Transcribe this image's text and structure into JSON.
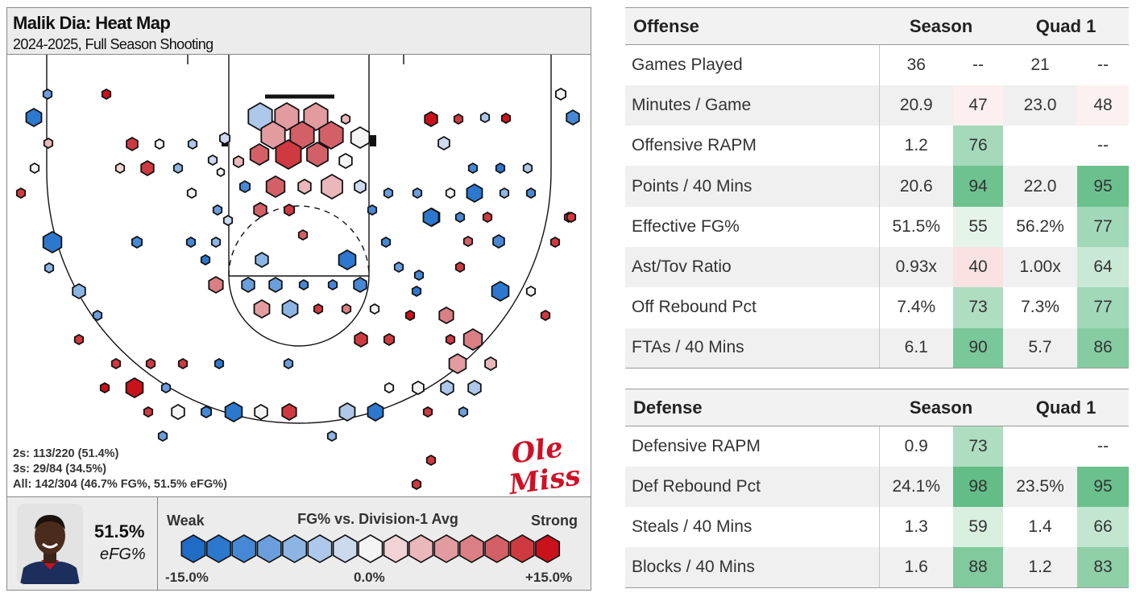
{
  "header": {
    "title": "Malik Dia: Heat Map",
    "subtitle": "2024-2025, Full Season Shooting"
  },
  "shooting_lines": {
    "twos": "2s: 113/220 (51.4%)",
    "threes": "3s: 29/84 (34.5%)",
    "all": "All: 142/304 (46.7% FG%, 51.5% eFG%)"
  },
  "logo": {
    "line1": "Ole",
    "line2": "Miss",
    "color": "#ce1126"
  },
  "player": {
    "efg_value": "51.5%",
    "efg_label": "eFG%"
  },
  "legend": {
    "weak": "Weak",
    "title": "FG% vs. Division-1 Avg",
    "strong": "Strong",
    "min": "-15.0%",
    "mid": "0.0%",
    "max": "+15.0%",
    "colors": [
      "#1f6cc6",
      "#2c78cf",
      "#4688d6",
      "#6a9edd",
      "#8db5e4",
      "#adc8ea",
      "#cdd9ee",
      "#f4f4f4",
      "#f2d3d5",
      "#eab7ba",
      "#e29ca0",
      "#da7f84",
      "#d36067",
      "#cf3a40",
      "#c9121c"
    ]
  },
  "chart_data": {
    "type": "heatmap",
    "title": "Malik Dia: Heat Map",
    "subtitle": "2024-2025, Full Season Shooting",
    "color_scale": {
      "min": -15.0,
      "mid": 0.0,
      "max": 15.0,
      "metric": "FG% vs. Division-1 Avg"
    },
    "summary": {
      "twos": "113/220",
      "two_pct": 51.4,
      "threes": "29/84",
      "three_pct": 34.5,
      "all": "142/304",
      "fg_pct": 46.7,
      "efg_pct": 51.5
    }
  },
  "offense": {
    "header": {
      "label": "Offense",
      "season": "Season",
      "quad1": "Quad 1"
    },
    "rows": [
      {
        "label": "Games Played",
        "season": "36",
        "season_pct": "--",
        "q1": "21",
        "q1_pct": "--"
      },
      {
        "label": "Minutes / Game",
        "season": "20.9",
        "season_pct": "47",
        "q1": "23.0",
        "q1_pct": "48"
      },
      {
        "label": "Offensive RAPM",
        "season": "1.2",
        "season_pct": "76",
        "q1": "",
        "q1_pct": "--"
      },
      {
        "label": "Points / 40 Mins",
        "season": "20.6",
        "season_pct": "94",
        "q1": "22.0",
        "q1_pct": "95"
      },
      {
        "label": "Effective FG%",
        "season": "51.5%",
        "season_pct": "55",
        "q1": "56.2%",
        "q1_pct": "77"
      },
      {
        "label": "Ast/Tov Ratio",
        "season": "0.93x",
        "season_pct": "40",
        "q1": "1.00x",
        "q1_pct": "64"
      },
      {
        "label": "Off Rebound Pct",
        "season": "7.4%",
        "season_pct": "73",
        "q1": "7.3%",
        "q1_pct": "77"
      },
      {
        "label": "FTAs / 40 Mins",
        "season": "6.1",
        "season_pct": "90",
        "q1": "5.7",
        "q1_pct": "86"
      }
    ]
  },
  "defense": {
    "header": {
      "label": "Defense",
      "season": "Season",
      "quad1": "Quad 1"
    },
    "rows": [
      {
        "label": "Defensive RAPM",
        "season": "0.9",
        "season_pct": "73",
        "q1": "",
        "q1_pct": "--"
      },
      {
        "label": "Def Rebound Pct",
        "season": "24.1%",
        "season_pct": "98",
        "q1": "23.5%",
        "q1_pct": "95"
      },
      {
        "label": "Steals / 40 Mins",
        "season": "1.3",
        "season_pct": "59",
        "q1": "1.4",
        "q1_pct": "66"
      },
      {
        "label": "Blocks / 40 Mins",
        "season": "1.6",
        "season_pct": "88",
        "q1": "1.2",
        "q1_pct": "83"
      }
    ]
  }
}
